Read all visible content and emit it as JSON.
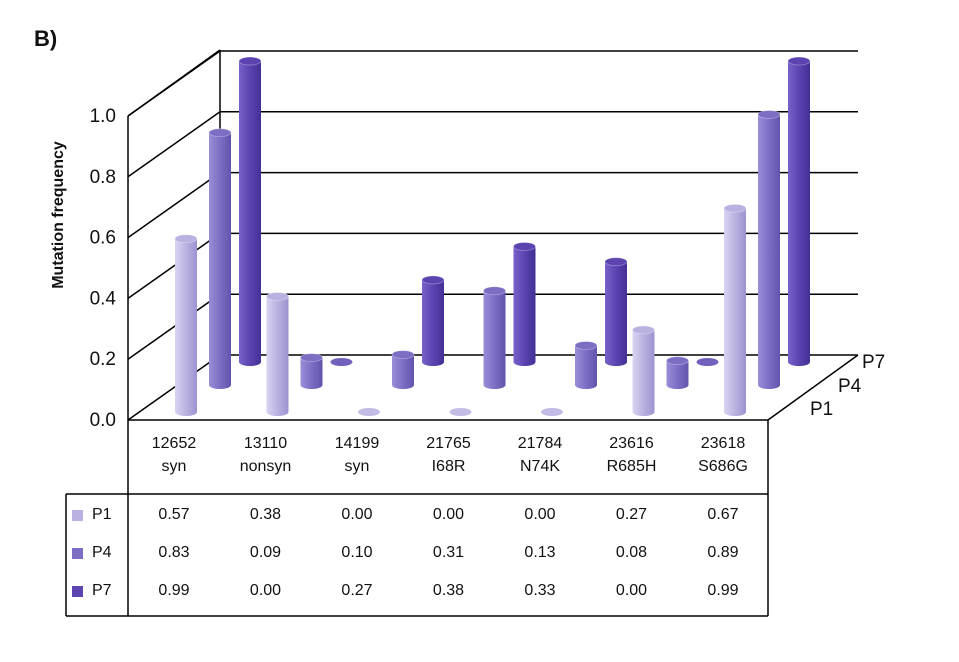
{
  "panel_label": "B)",
  "colors": {
    "P1": "#b9b2e0",
    "P4": "#7d6ec4",
    "P7": "#5b44b0"
  },
  "chart_data": {
    "type": "bar",
    "ylabel": "Mutation frequency",
    "ylim": [
      0,
      1.0
    ],
    "yticks": [
      "0.0",
      "0.2",
      "0.4",
      "0.6",
      "0.8",
      "1.0"
    ],
    "grid": true,
    "legend": "table-left",
    "categories": [
      {
        "id": "12652",
        "type": "syn"
      },
      {
        "id": "13110",
        "type": "nonsyn"
      },
      {
        "id": "14199",
        "type": "syn"
      },
      {
        "id": "21765",
        "type": "I68R"
      },
      {
        "id": "21784",
        "type": "N74K"
      },
      {
        "id": "23616",
        "type": "R685H"
      },
      {
        "id": "23618",
        "type": "S686G"
      }
    ],
    "series": [
      {
        "name": "P1",
        "values": [
          0.57,
          0.38,
          0.0,
          0.0,
          0.0,
          0.27,
          0.67
        ],
        "labels": [
          "0.57",
          "0.38",
          "0.00",
          "0.00",
          "0.00",
          "0.27",
          "0.67"
        ]
      },
      {
        "name": "P4",
        "values": [
          0.83,
          0.09,
          0.1,
          0.31,
          0.13,
          0.08,
          0.89
        ],
        "labels": [
          "0.83",
          "0.09",
          "0.10",
          "0.31",
          "0.13",
          "0.08",
          "0.89"
        ]
      },
      {
        "name": "P7",
        "values": [
          0.99,
          0.0,
          0.27,
          0.38,
          0.33,
          0.0,
          0.99
        ],
        "labels": [
          "0.99",
          "0.00",
          "0.27",
          "0.38",
          "0.33",
          "0.00",
          "0.99"
        ]
      }
    ]
  }
}
